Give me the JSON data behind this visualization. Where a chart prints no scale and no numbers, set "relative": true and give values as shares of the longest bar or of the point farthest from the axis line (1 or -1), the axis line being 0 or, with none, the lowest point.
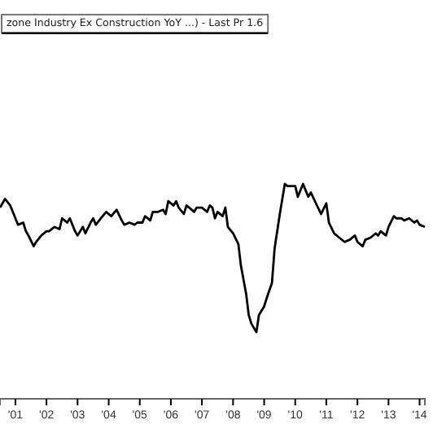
{
  "chart_data": {
    "type": "line",
    "relative": true,
    "legend": "top left",
    "grid": false,
    "xlim": [
      "2001-01",
      "2014-09"
    ],
    "xticks": [
      {
        "value": "2001-07",
        "label": "'01"
      },
      {
        "value": "2002-07",
        "label": "'02"
      },
      {
        "value": "2003-07",
        "label": "'03"
      },
      {
        "value": "2004-07",
        "label": "'04"
      },
      {
        "value": "2005-07",
        "label": "'05"
      },
      {
        "value": "2006-07",
        "label": "'06"
      },
      {
        "value": "2007-07",
        "label": "'07"
      },
      {
        "value": "2008-07",
        "label": "'08"
      },
      {
        "value": "2009-07",
        "label": "'09"
      },
      {
        "value": "2010-07",
        "label": "'10"
      },
      {
        "value": "2011-07",
        "label": "'11"
      },
      {
        "value": "2012-07",
        "label": "'12"
      },
      {
        "value": "2013-07",
        "label": "'13"
      },
      {
        "value": "2014-07",
        "label": "'14"
      }
    ],
    "series": [
      {
        "name": "zone Industry Ex Construction YoY ...) - Last Pr 1.6",
        "color": "#000000",
        "x": [
          "2001-01",
          "2001-03",
          "2001-05",
          "2001-07",
          "2001-08",
          "2001-10",
          "2001-11",
          "2001-12",
          "2002-02",
          "2002-03",
          "2002-05",
          "2002-07",
          "2002-08",
          "2002-10",
          "2002-12",
          "2003-01",
          "2003-03",
          "2003-04",
          "2003-06",
          "2003-07",
          "2003-09",
          "2003-10",
          "2003-12",
          "2004-01",
          "2004-02",
          "2004-04",
          "2004-06",
          "2004-08",
          "2004-10",
          "2004-12",
          "2005-01",
          "2005-03",
          "2005-05",
          "2005-06",
          "2005-08",
          "2005-09",
          "2005-11",
          "2005-12",
          "2006-02",
          "2006-04",
          "2006-05",
          "2006-06",
          "2006-08",
          "2006-09",
          "2006-10",
          "2006-12",
          "2007-01",
          "2007-02",
          "2007-04",
          "2007-05",
          "2007-07",
          "2007-09",
          "2007-10",
          "2007-11",
          "2007-12",
          "2008-01",
          "2008-03",
          "2008-04",
          "2008-05",
          "2008-07",
          "2008-09",
          "2008-10",
          "2008-12",
          "2009-01",
          "2009-02",
          "2009-04",
          "2009-05",
          "2009-07",
          "2009-08",
          "2009-10",
          "2009-11",
          "2010-01",
          "2010-03",
          "2010-04",
          "2010-07",
          "2010-08",
          "2010-10",
          "2010-12",
          "2011-01",
          "2011-03",
          "2011-05",
          "2011-07",
          "2011-08",
          "2011-10",
          "2011-12",
          "2012-02",
          "2012-04",
          "2012-06",
          "2012-07",
          "2012-09",
          "2012-10",
          "2012-12",
          "2013-02",
          "2013-03",
          "2013-04",
          "2013-06",
          "2013-07",
          "2013-09",
          "2013-10",
          "2013-12",
          "2014-01",
          "2014-03",
          "2014-05",
          "2014-06",
          "2014-07",
          "2014-09"
        ],
        "values": [
          0.89,
          0.93,
          0.9,
          0.84,
          0.81,
          0.82,
          0.78,
          0.76,
          0.71,
          0.73,
          0.76,
          0.78,
          0.78,
          0.8,
          0.79,
          0.84,
          0.82,
          0.84,
          0.78,
          0.76,
          0.8,
          0.77,
          0.82,
          0.84,
          0.81,
          0.84,
          0.87,
          0.85,
          0.88,
          0.83,
          0.81,
          0.82,
          0.81,
          0.82,
          0.82,
          0.85,
          0.83,
          0.87,
          0.87,
          0.88,
          0.86,
          0.92,
          0.9,
          0.92,
          0.89,
          0.86,
          0.9,
          0.89,
          0.87,
          0.89,
          0.89,
          0.87,
          0.9,
          0.89,
          0.84,
          0.87,
          0.85,
          0.89,
          0.8,
          0.77,
          0.72,
          0.62,
          0.49,
          0.39,
          0.35,
          0.31,
          0.39,
          0.43,
          0.47,
          0.54,
          0.7,
          0.86,
          1,
          0.99,
          0.99,
          0.94,
          1,
          0.94,
          0.96,
          0.91,
          0.86,
          0.91,
          0.82,
          0.77,
          0.75,
          0.73,
          0.74,
          0.76,
          0.73,
          0.71,
          0.74,
          0.75,
          0.77,
          0.76,
          0.78,
          0.76,
          0.8,
          0.85,
          0.84,
          0.84,
          0.83,
          0.84,
          0.82,
          0.83,
          0.81,
          0.8
        ]
      }
    ]
  }
}
